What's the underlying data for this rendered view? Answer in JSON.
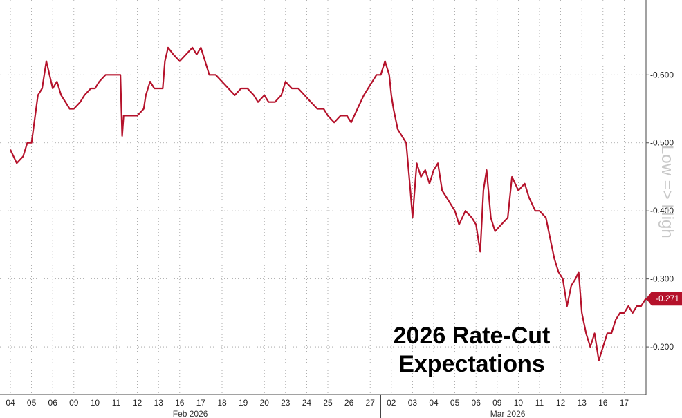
{
  "chart_data": {
    "type": "line",
    "title": "",
    "annotation_lines": [
      "2026 Rate-Cut",
      "Expectations"
    ],
    "side_label": "Low => High",
    "ylim": [
      0.13,
      0.71
    ],
    "yticks": [
      0.2,
      0.3,
      0.4,
      0.5,
      0.6
    ],
    "ytick_labels": [
      "-0.200",
      "-0.300",
      "-0.400",
      "-0.500",
      "-0.600"
    ],
    "grid": true,
    "x_labels": [
      "04",
      "05",
      "06",
      "09",
      "10",
      "11",
      "12",
      "13",
      "16",
      "17",
      "18",
      "19",
      "20",
      "23",
      "24",
      "25",
      "26",
      "27",
      "02",
      "03",
      "04",
      "05",
      "06",
      "09",
      "10",
      "11",
      "12",
      "13",
      "16",
      "17"
    ],
    "months": [
      {
        "label": "Feb 2026",
        "start_index": 0,
        "end_index": 17
      },
      {
        "label": "Mar 2026",
        "start_index": 18,
        "end_index": 29
      }
    ],
    "last_value_label": "-0.271",
    "line_color": "#b5122b",
    "series": [
      {
        "values": [
          [
            0.0,
            0.49
          ],
          [
            0.3,
            0.47
          ],
          [
            0.6,
            0.48
          ],
          [
            0.8,
            0.5
          ],
          [
            1.0,
            0.5
          ],
          [
            1.3,
            0.57
          ],
          [
            1.5,
            0.58
          ],
          [
            1.7,
            0.62
          ],
          [
            2.0,
            0.58
          ],
          [
            2.2,
            0.59
          ],
          [
            2.4,
            0.57
          ],
          [
            2.6,
            0.56
          ],
          [
            2.8,
            0.55
          ],
          [
            3.0,
            0.55
          ],
          [
            3.3,
            0.56
          ],
          [
            3.5,
            0.57
          ],
          [
            3.8,
            0.58
          ],
          [
            4.0,
            0.58
          ],
          [
            4.2,
            0.59
          ],
          [
            4.5,
            0.6
          ],
          [
            4.8,
            0.6
          ],
          [
            5.0,
            0.6
          ],
          [
            5.2,
            0.6
          ],
          [
            5.28,
            0.51
          ],
          [
            5.35,
            0.54
          ],
          [
            5.6,
            0.54
          ],
          [
            6.0,
            0.54
          ],
          [
            6.3,
            0.55
          ],
          [
            6.4,
            0.57
          ],
          [
            6.6,
            0.59
          ],
          [
            6.8,
            0.58
          ],
          [
            7.0,
            0.58
          ],
          [
            7.2,
            0.58
          ],
          [
            7.3,
            0.62
          ],
          [
            7.45,
            0.64
          ],
          [
            7.7,
            0.63
          ],
          [
            8.0,
            0.62
          ],
          [
            8.3,
            0.63
          ],
          [
            8.6,
            0.64
          ],
          [
            8.8,
            0.63
          ],
          [
            9.0,
            0.64
          ],
          [
            9.2,
            0.62
          ],
          [
            9.4,
            0.6
          ],
          [
            9.7,
            0.6
          ],
          [
            10.0,
            0.59
          ],
          [
            10.3,
            0.58
          ],
          [
            10.6,
            0.57
          ],
          [
            10.9,
            0.58
          ],
          [
            11.2,
            0.58
          ],
          [
            11.5,
            0.57
          ],
          [
            11.7,
            0.56
          ],
          [
            12.0,
            0.57
          ],
          [
            12.2,
            0.56
          ],
          [
            12.5,
            0.56
          ],
          [
            12.8,
            0.57
          ],
          [
            13.0,
            0.59
          ],
          [
            13.3,
            0.58
          ],
          [
            13.6,
            0.58
          ],
          [
            13.9,
            0.57
          ],
          [
            14.2,
            0.56
          ],
          [
            14.5,
            0.55
          ],
          [
            14.8,
            0.55
          ],
          [
            15.0,
            0.54
          ],
          [
            15.3,
            0.53
          ],
          [
            15.6,
            0.54
          ],
          [
            15.9,
            0.54
          ],
          [
            16.1,
            0.53
          ],
          [
            16.4,
            0.55
          ],
          [
            16.7,
            0.57
          ],
          [
            16.9,
            0.58
          ],
          [
            17.1,
            0.59
          ],
          [
            17.3,
            0.6
          ],
          [
            17.5,
            0.6
          ],
          [
            17.7,
            0.62
          ],
          [
            17.9,
            0.6
          ],
          [
            18.0,
            0.57
          ],
          [
            18.1,
            0.55
          ],
          [
            18.3,
            0.52
          ],
          [
            18.5,
            0.51
          ],
          [
            18.7,
            0.5
          ],
          [
            18.9,
            0.43
          ],
          [
            19.0,
            0.39
          ],
          [
            19.2,
            0.47
          ],
          [
            19.4,
            0.45
          ],
          [
            19.6,
            0.46
          ],
          [
            19.8,
            0.44
          ],
          [
            20.0,
            0.46
          ],
          [
            20.2,
            0.47
          ],
          [
            20.4,
            0.43
          ],
          [
            20.6,
            0.42
          ],
          [
            20.8,
            0.41
          ],
          [
            21.0,
            0.4
          ],
          [
            21.2,
            0.38
          ],
          [
            21.5,
            0.4
          ],
          [
            21.8,
            0.39
          ],
          [
            22.0,
            0.38
          ],
          [
            22.2,
            0.34
          ],
          [
            22.35,
            0.43
          ],
          [
            22.5,
            0.46
          ],
          [
            22.7,
            0.39
          ],
          [
            22.9,
            0.37
          ],
          [
            23.2,
            0.38
          ],
          [
            23.5,
            0.39
          ],
          [
            23.7,
            0.45
          ],
          [
            24.0,
            0.43
          ],
          [
            24.3,
            0.44
          ],
          [
            24.5,
            0.42
          ],
          [
            24.8,
            0.4
          ],
          [
            25.0,
            0.4
          ],
          [
            25.3,
            0.39
          ],
          [
            25.5,
            0.36
          ],
          [
            25.7,
            0.33
          ],
          [
            25.9,
            0.31
          ],
          [
            26.1,
            0.3
          ],
          [
            26.3,
            0.26
          ],
          [
            26.5,
            0.29
          ],
          [
            26.7,
            0.3
          ],
          [
            26.85,
            0.31
          ],
          [
            27.0,
            0.25
          ],
          [
            27.2,
            0.22
          ],
          [
            27.4,
            0.2
          ],
          [
            27.6,
            0.22
          ],
          [
            27.8,
            0.18
          ],
          [
            28.0,
            0.2
          ],
          [
            28.2,
            0.22
          ],
          [
            28.4,
            0.22
          ],
          [
            28.6,
            0.24
          ],
          [
            28.8,
            0.25
          ],
          [
            29.0,
            0.25
          ],
          [
            29.2,
            0.26
          ],
          [
            29.4,
            0.25
          ],
          [
            29.6,
            0.26
          ],
          [
            29.8,
            0.26
          ],
          [
            30.0,
            0.27
          ],
          [
            30.2,
            0.271
          ]
        ]
      }
    ]
  }
}
